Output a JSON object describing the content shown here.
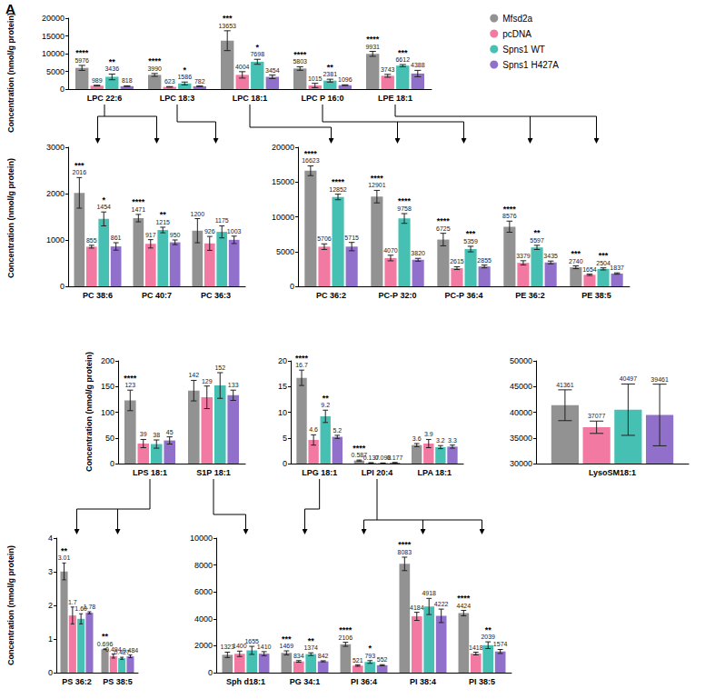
{
  "panel_label": "A",
  "chart_data": [
    {
      "type": "bar",
      "y_label": "Concentration (nmol/g protein)",
      "legend": "top right",
      "grid": false,
      "data_labels": true,
      "categories": [
        "LPC 22:6",
        "LPC 18:3",
        "LPC 18:1",
        "LPC P 16:0",
        "LPE 18:1"
      ],
      "ylim": [
        0,
        20000
      ],
      "yticks": [
        0,
        5000,
        10000,
        15000,
        20000
      ],
      "series": [
        {
          "name": "Mfsd2a",
          "color": "#7f7f7f",
          "values": [
            5976,
            3990,
            13653,
            5803,
            9931
          ],
          "errors": [
            700,
            400,
            2800,
            500,
            700
          ],
          "significance": [
            "****",
            "****",
            "***",
            "****",
            "****"
          ]
        },
        {
          "name": "pcDNA",
          "color": "#f06292",
          "values": [
            989,
            623,
            4004,
            1015,
            3743
          ],
          "errors": [
            100,
            80,
            900,
            600,
            400
          ]
        },
        {
          "name": "Spns1 WT",
          "color": "#26b5a6",
          "values": [
            3436,
            1586,
            7698,
            2381,
            6612
          ],
          "errors": [
            800,
            400,
            700,
            400,
            300
          ],
          "significance": [
            "**",
            "*",
            "*",
            "**",
            "***"
          ]
        },
        {
          "name": "Spns1 H427A",
          "color": "#7e57c2",
          "values": [
            818,
            782,
            3454,
            1096,
            4388
          ],
          "errors": [
            100,
            80,
            500,
            100,
            900
          ]
        }
      ]
    },
    {
      "type": "bar",
      "y_label": "Concentration (nmol/g protein)",
      "grid": false,
      "data_labels": true,
      "categories": [
        "PC 38:6",
        "PC 40:7",
        "PC 36:3"
      ],
      "ylim": [
        0,
        3000
      ],
      "yticks": [
        0,
        1000,
        2000,
        3000
      ],
      "series": [
        {
          "name": "Mfsd2a",
          "color": "#7f7f7f",
          "values": [
            2016,
            1471,
            1200
          ],
          "errors": [
            330,
            80,
            260
          ],
          "significance": [
            "***",
            "****",
            null
          ]
        },
        {
          "name": "pcDNA",
          "color": "#f06292",
          "values": [
            855,
            917,
            926
          ],
          "errors": [
            30,
            90,
            150
          ]
        },
        {
          "name": "Spns1 WT",
          "color": "#26b5a6",
          "values": [
            1454,
            1215,
            1175
          ],
          "errors": [
            150,
            60,
            130
          ],
          "significance": [
            "*",
            "**",
            null
          ]
        },
        {
          "name": "Spns1 H427A",
          "color": "#7e57c2",
          "values": [
            861,
            950,
            1003
          ],
          "errors": [
            80,
            50,
            80
          ]
        }
      ]
    },
    {
      "type": "bar",
      "grid": false,
      "data_labels": true,
      "categories": [
        "PC 36:2",
        "PC-P 32:0",
        "PC-P 36:4",
        "PE 36:2",
        "PE 38:5"
      ],
      "ylim": [
        0,
        20000
      ],
      "yticks": [
        0,
        5000,
        10000,
        15000,
        20000
      ],
      "series": [
        {
          "name": "Mfsd2a",
          "color": "#7f7f7f",
          "values": [
            16623,
            12901,
            6725,
            8576,
            2740
          ],
          "errors": [
            700,
            900,
            900,
            800,
            200
          ],
          "significance": [
            "****",
            "****",
            "****",
            "****",
            "***"
          ]
        },
        {
          "name": "pcDNA",
          "color": "#f06292",
          "values": [
            5706,
            4070,
            2615,
            3379,
            1654
          ],
          "errors": [
            400,
            400,
            200,
            300,
            100
          ]
        },
        {
          "name": "Spns1 WT",
          "color": "#26b5a6",
          "values": [
            12852,
            9758,
            5359,
            5597,
            2504
          ],
          "errors": [
            400,
            700,
            400,
            300,
            150
          ],
          "significance": [
            "****",
            "****",
            "***",
            "**",
            "***"
          ]
        },
        {
          "name": "Spns1 H427A",
          "color": "#7e57c2",
          "values": [
            5715,
            3820,
            2855,
            3435,
            1837
          ],
          "errors": [
            600,
            200,
            200,
            200,
            100
          ]
        }
      ]
    },
    {
      "type": "bar",
      "y_label": "Concentration (nmol/g protein)",
      "grid": false,
      "data_labels": true,
      "categories": [
        "LPS 18:1",
        "S1P 18:1"
      ],
      "ylim": [
        0,
        200
      ],
      "yticks": [
        0,
        50,
        100,
        150,
        200
      ],
      "series": [
        {
          "name": "Mfsd2a",
          "color": "#7f7f7f",
          "values": [
            123,
            142
          ],
          "errors": [
            20,
            20
          ],
          "significance": [
            "****",
            null
          ]
        },
        {
          "name": "pcDNA",
          "color": "#f06292",
          "values": [
            39,
            129
          ],
          "errors": [
            8,
            22
          ]
        },
        {
          "name": "Spns1 WT",
          "color": "#26b5a6",
          "values": [
            38,
            152
          ],
          "errors": [
            8,
            25
          ]
        },
        {
          "name": "Spns1 H427A",
          "color": "#7e57c2",
          "values": [
            45,
            133
          ],
          "errors": [
            7,
            10
          ]
        }
      ]
    },
    {
      "type": "bar",
      "grid": false,
      "data_labels": true,
      "categories": [
        "LPG 18:1",
        "LPI 20:4",
        "LPA 18:1"
      ],
      "ylim": [
        0,
        20
      ],
      "yticks": [
        0,
        5,
        10,
        15,
        20
      ],
      "series": [
        {
          "name": "Mfsd2a",
          "color": "#7f7f7f",
          "values": [
            16.7,
            0.587,
            3.6
          ],
          "errors": [
            1.5,
            0.1,
            0.3
          ],
          "significance": [
            "****",
            "****",
            null
          ]
        },
        {
          "name": "pcDNA",
          "color": "#f06292",
          "values": [
            4.6,
            0.137,
            3.9
          ],
          "errors": [
            1,
            0.03,
            0.8
          ]
        },
        {
          "name": "Spns1 WT",
          "color": "#26b5a6",
          "values": [
            9.2,
            0.098,
            3.2
          ],
          "errors": [
            1.2,
            0.02,
            0.3
          ],
          "significance": [
            "**",
            null,
            null
          ]
        },
        {
          "name": "Spns1 H427A",
          "color": "#7e57c2",
          "values": [
            5.2,
            0.177,
            3.3
          ],
          "errors": [
            0.3,
            0.03,
            0.3
          ]
        }
      ]
    },
    {
      "type": "bar",
      "grid": false,
      "data_labels": true,
      "categories": [
        "LysoSM18:1"
      ],
      "ylim": [
        30000,
        50000
      ],
      "yticks": [
        30000,
        35000,
        40000,
        45000,
        50000
      ],
      "series": [
        {
          "name": "Mfsd2a",
          "color": "#7f7f7f",
          "values": [
            41361
          ],
          "errors": [
            3000
          ]
        },
        {
          "name": "pcDNA",
          "color": "#f06292",
          "values": [
            37077
          ],
          "errors": [
            1200
          ]
        },
        {
          "name": "Spns1 WT",
          "color": "#26b5a6",
          "values": [
            40497
          ],
          "errors": [
            5000
          ]
        },
        {
          "name": "Spns1 H427A",
          "color": "#7e57c2",
          "values": [
            39461
          ],
          "errors": [
            6000
          ]
        }
      ]
    },
    {
      "type": "bar",
      "y_label": "Concentration (nmol/g protein)",
      "grid": false,
      "data_labels": true,
      "categories": [
        "PS 36:2",
        "PS 38:5"
      ],
      "ylim": [
        0,
        4
      ],
      "yticks": [
        0,
        1,
        2,
        3,
        4
      ],
      "series": [
        {
          "name": "Mfsd2a",
          "color": "#7f7f7f",
          "values": [
            3.01,
            0.696
          ],
          "errors": [
            0.25,
            0.01
          ],
          "significance": [
            "**",
            "**"
          ]
        },
        {
          "name": "pcDNA",
          "color": "#f06292",
          "values": [
            1.7,
            0.494
          ],
          "errors": [
            0.25,
            0.06
          ]
        },
        {
          "name": "Spns1 WT",
          "color": "#26b5a6",
          "values": [
            1.6,
            0.427
          ],
          "value_labels": [
            "1.60",
            "0.427"
          ],
          "errors": [
            0.15,
            0.03
          ]
        },
        {
          "name": "Spns1 H427A",
          "color": "#7e57c2",
          "values": [
            1.78,
            0.484
          ],
          "errors": [
            0.03,
            0.04
          ]
        }
      ]
    },
    {
      "type": "bar",
      "grid": false,
      "data_labels": true,
      "categories": [
        "Sph d18:1",
        "PG 34:1",
        "PI 36:4",
        "PI 38:4",
        "PI 38:5"
      ],
      "ylim": [
        0,
        10000
      ],
      "yticks": [
        0,
        2000,
        4000,
        6000,
        8000,
        10000
      ],
      "series": [
        {
          "name": "Mfsd2a",
          "color": "#7f7f7f",
          "values": [
            1323,
            1469,
            2106,
            8083,
            4424
          ],
          "errors": [
            200,
            150,
            150,
            500,
            200
          ],
          "significance": [
            null,
            "***",
            "****",
            "****",
            "****"
          ]
        },
        {
          "name": "pcDNA",
          "color": "#f06292",
          "values": [
            1400,
            834,
            521,
            4184,
            1418
          ],
          "errors": [
            200,
            60,
            50,
            300,
            100
          ]
        },
        {
          "name": "Spns1 WT",
          "color": "#26b5a6",
          "values": [
            1655,
            1374,
            793,
            4918,
            2039
          ],
          "errors": [
            300,
            100,
            100,
            600,
            250
          ],
          "significance": [
            null,
            "**",
            "*",
            null,
            "**"
          ]
        },
        {
          "name": "Spns1 H427A",
          "color": "#7e57c2",
          "values": [
            1410,
            842,
            552,
            4222,
            1574
          ],
          "errors": [
            150,
            40,
            40,
            500,
            150
          ]
        }
      ]
    }
  ]
}
